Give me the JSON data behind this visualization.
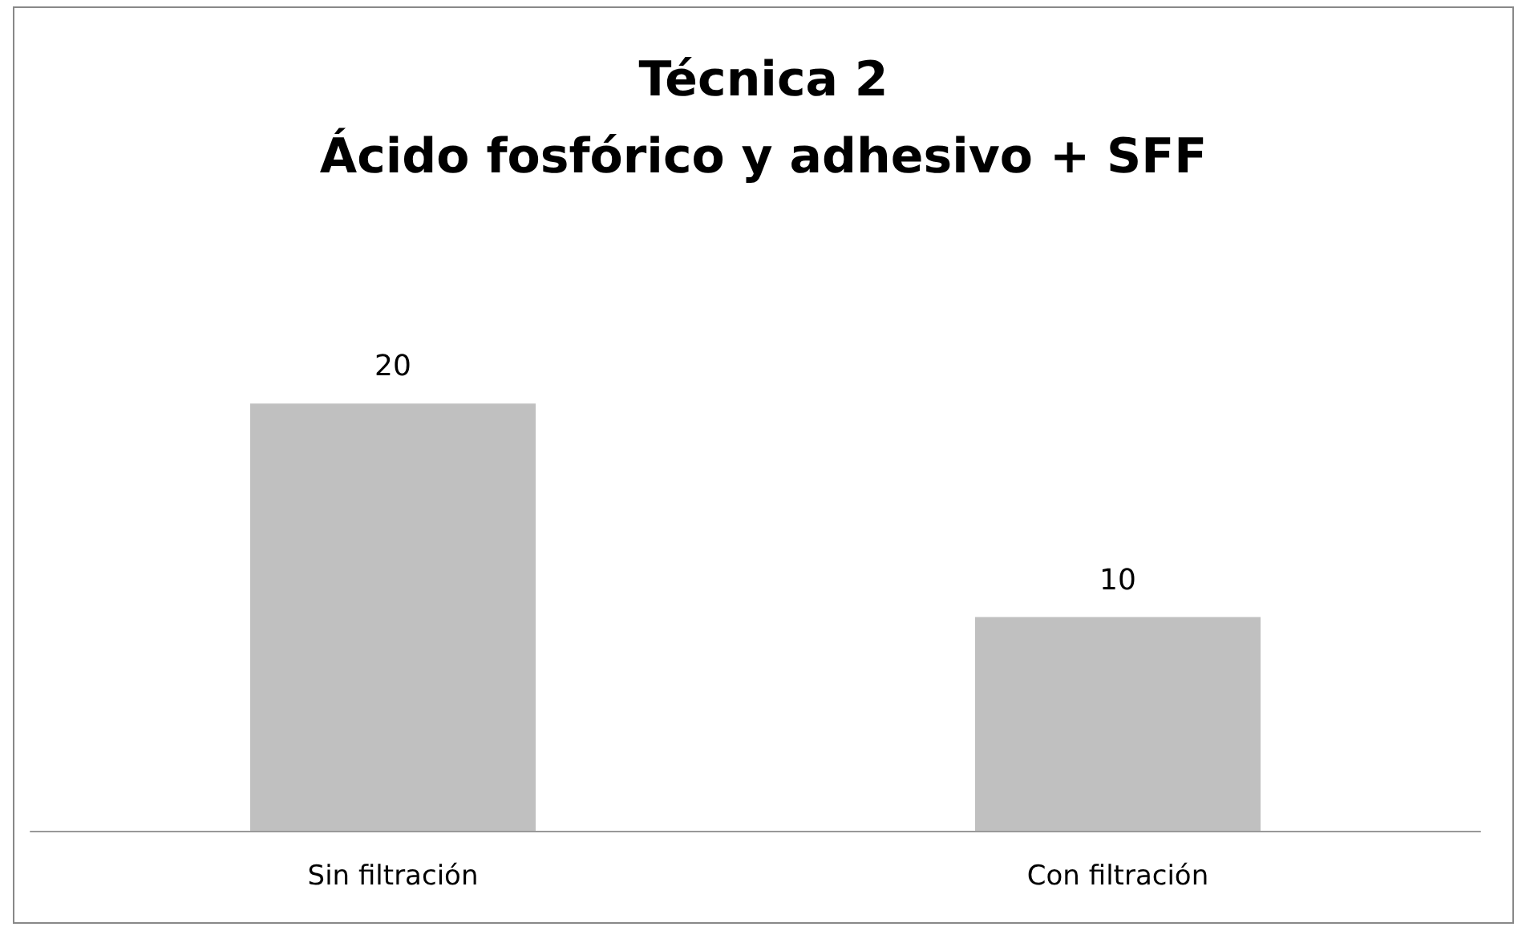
{
  "chart_data": {
    "type": "bar",
    "title": "Técnica 2\nÁcido fosfórico y adhesivo + SFF",
    "categories": [
      "Sin filtración",
      "Con filtración"
    ],
    "values": [
      20,
      10
    ],
    "color": "#c0c0c0",
    "data_labels": true
  }
}
